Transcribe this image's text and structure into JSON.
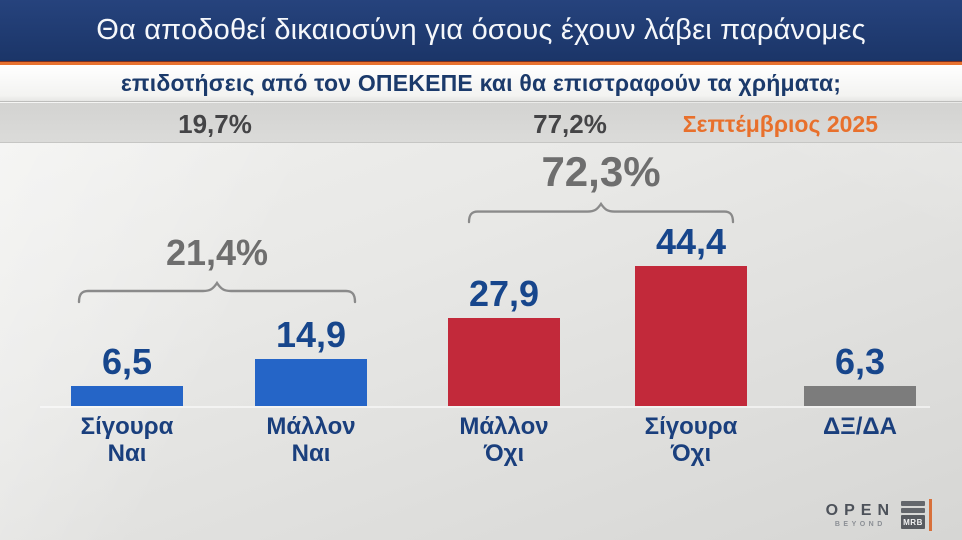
{
  "header": {
    "title_line1": "Θα αποδοθεί δικαιοσύνη για όσους έχουν λάβει παράνομες",
    "title_line2": "επιδοτήσεις από τον ΟΠΕΚΕΠΕ και θα επιστραφούν τα χρήματα;",
    "date_label": "Σεπτέμβριος 2025"
  },
  "totals": {
    "yes_percent": "19,7%",
    "no_percent": "77,2%"
  },
  "chart_data": {
    "type": "bar",
    "title": "Θα αποδοθεί δικαιοσύνη για όσους έχουν λάβει παράνομες επιδοτήσεις από τον ΟΠΕΚΕΠΕ και θα επιστραφούν τα χρήματα;",
    "categories": [
      "Σίγουρα Ναι",
      "Μάλλον Ναι",
      "Μάλλον Όχι",
      "Σίγουρα Όχι",
      "ΔΞ/ΔΑ"
    ],
    "category_display": [
      "Σίγουρα\nΝαι",
      "Μάλλον\nΝαι",
      "Μάλλον\nΌχι",
      "Σίγουρα\nΌχι",
      "ΔΞ/ΔΑ"
    ],
    "values": [
      6.5,
      14.9,
      27.9,
      44.4,
      6.3
    ],
    "value_labels": [
      "6,5",
      "14,9",
      "27,9",
      "44,4",
      "6,3"
    ],
    "bar_colors": [
      "#2565c7",
      "#2565c7",
      "#c2293a",
      "#c2293a",
      "#7c7c7c"
    ],
    "groups": [
      {
        "label": "21,4%",
        "value": 21.4,
        "members": [
          "Σίγουρα Ναι",
          "Μάλλον Ναι"
        ]
      },
      {
        "label": "72,3%",
        "value": 72.3,
        "members": [
          "Μάλλον Όχι",
          "Σίγουρα Όχι"
        ]
      }
    ],
    "summary_row": {
      "yes_total": "19,7%",
      "no_total": "77,2%"
    },
    "xlabel": "",
    "ylabel": "",
    "ylim": [
      0,
      50
    ],
    "grid": false,
    "legend": "none"
  },
  "footer": {
    "channel": "OPEN",
    "channel_tagline": "BEYOND",
    "agency": "MRB"
  },
  "colors": {
    "banner_bg": "#1e3a6e",
    "accent_orange": "#e8702c",
    "value_text": "#17468c",
    "group_text": "#6e6e6e",
    "bar_blue": "#2565c7",
    "bar_red": "#c2293a",
    "bar_gray": "#7c7c7c"
  }
}
